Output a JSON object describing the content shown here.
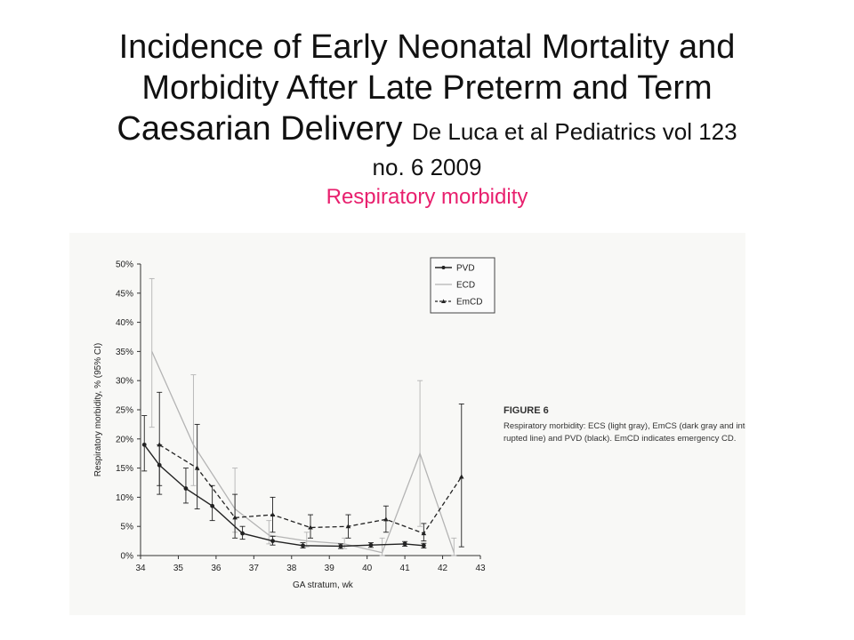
{
  "slide": {
    "title_line1": "Incidence of Early Neonatal Mortality and",
    "title_line2": "Morbidity After Late Preterm and Term",
    "title_line3": "Caesarian Delivery",
    "citation_inline": "De Luca et al Pediatrics vol 123",
    "citation_line2": "no. 6  2009",
    "subtitle": "Respiratory morbidity"
  },
  "figure": {
    "label": "FIGURE 6",
    "caption_line1": "Respiratory morbidity: ECS (light gray), EmCS (dark gray and inter-",
    "caption_line2": "rupted line) and PVD (black). EmCD indicates emergency CD."
  },
  "colors": {
    "pvd": "#222222",
    "ecd": "#b4b4b4",
    "emcd": "#222222",
    "subtitle": "#e8206e"
  },
  "chart_data": {
    "type": "line",
    "xlabel": "GA stratum, wk",
    "ylabel": "Respiratory morbidity, % (95% CI)",
    "xlim": [
      34,
      43
    ],
    "ylim": [
      0,
      50
    ],
    "x_ticks": [
      "34",
      "35",
      "36",
      "37",
      "38",
      "39",
      "40",
      "41",
      "42",
      "43"
    ],
    "y_ticks": [
      "0%",
      "5%",
      "10%",
      "15%",
      "20%",
      "25%",
      "30%",
      "35%",
      "40%",
      "45%",
      "50%"
    ],
    "legend": [
      "PVD",
      "ECD",
      "EmCD"
    ],
    "legend_position": "top-right",
    "grid": false,
    "series": [
      {
        "name": "PVD",
        "style": "solid-dark",
        "x": [
          34.1,
          34.5,
          35.2,
          35.9,
          36.7,
          37.5,
          38.3,
          39.3,
          40.1,
          41.0,
          41.5
        ],
        "y": [
          19,
          15.5,
          11.5,
          8.5,
          3.8,
          2.5,
          1.7,
          1.6,
          1.8,
          2.0,
          1.7
        ],
        "ci_low": [
          14.5,
          12,
          9,
          6,
          2.8,
          1.8,
          1.3,
          1.2,
          1.4,
          1.6,
          1.3
        ],
        "ci_high": [
          24,
          19,
          15,
          12,
          5,
          3.3,
          2.2,
          2.0,
          2.2,
          2.4,
          2.1
        ]
      },
      {
        "name": "ECD",
        "style": "solid-light",
        "x": [
          34.3,
          35.4,
          36.5,
          37.4,
          38.4,
          39.4,
          40.4,
          41.4,
          42.3
        ],
        "y": [
          35,
          19,
          8,
          3.5,
          2.5,
          2.0,
          0.5,
          17.5,
          0.5
        ],
        "ci_low": [
          22,
          12,
          4,
          2,
          1.5,
          1.2,
          0,
          5,
          0
        ],
        "ci_high": [
          47.5,
          31,
          15,
          6,
          4,
          3,
          3,
          30,
          3
        ]
      },
      {
        "name": "EmCD",
        "style": "dashed-dark",
        "x": [
          34.5,
          35.5,
          36.5,
          37.5,
          38.5,
          39.5,
          40.5,
          41.5,
          42.5
        ],
        "y": [
          19,
          15,
          6.5,
          7,
          4.8,
          5,
          6.2,
          3.8,
          13.5
        ],
        "ci_low": [
          10.5,
          8,
          3,
          4,
          3,
          3,
          4,
          2.5,
          1.5
        ],
        "ci_high": [
          28,
          22.5,
          10.5,
          10,
          7,
          7,
          8.5,
          5.5,
          26
        ]
      }
    ]
  }
}
